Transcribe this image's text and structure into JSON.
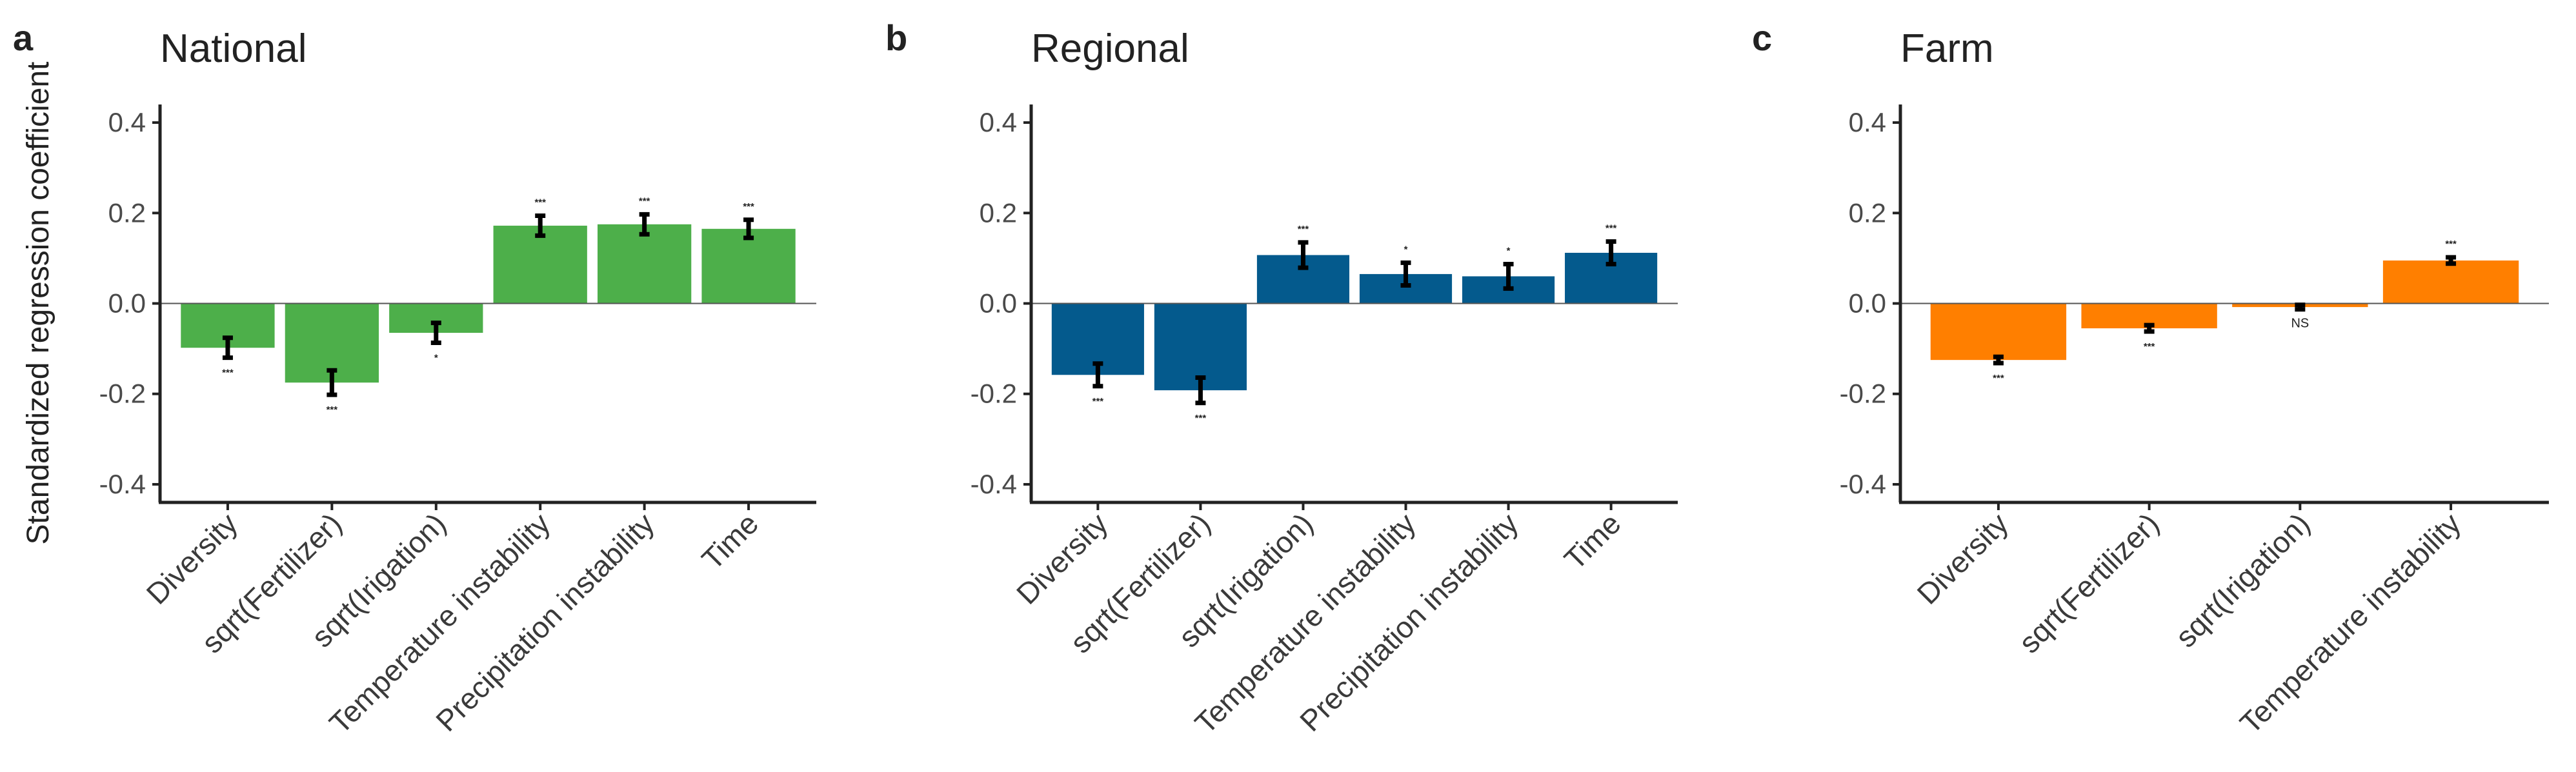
{
  "ylabel": "Standardized regression coefficient",
  "chart_data": [
    {
      "type": "bar",
      "panel": "a",
      "title": "National",
      "color": "#4DAF4A",
      "categories": [
        "Diversity",
        "sqrt(Fertilizer)",
        "sqrt(Irigation)",
        "Temperature instability",
        "Precipitation instability",
        "Time"
      ],
      "values": [
        -0.098,
        -0.175,
        -0.065,
        0.172,
        0.175,
        0.165
      ],
      "errors": [
        0.022,
        0.027,
        0.022,
        0.022,
        0.022,
        0.02
      ],
      "significance": [
        "***",
        "***",
        "*",
        "***",
        "***",
        "***"
      ],
      "ylim": [
        -0.44,
        0.44
      ],
      "yticks": [
        0.4,
        0.2,
        0.0,
        -0.2,
        -0.4
      ],
      "ytick_labels": [
        "0.4",
        "0.2",
        "0.0",
        "-0.2",
        "-0.4"
      ],
      "xlabel": "",
      "ylabel": "Standardized regression coefficient",
      "grid": false
    },
    {
      "type": "bar",
      "panel": "b",
      "title": "Regional",
      "color": "#045A8D",
      "categories": [
        "Diversity",
        "sqrt(Fertilizer)",
        "sqrt(Irigation)",
        "Temperature instability",
        "Precipitation instability",
        "Time"
      ],
      "values": [
        -0.158,
        -0.192,
        0.107,
        0.065,
        0.06,
        0.112
      ],
      "errors": [
        0.025,
        0.028,
        0.028,
        0.025,
        0.027,
        0.025
      ],
      "significance": [
        "***",
        "***",
        "***",
        "*",
        "*",
        "***"
      ],
      "ylim": [
        -0.44,
        0.44
      ],
      "yticks": [
        0.4,
        0.2,
        0.0,
        -0.2,
        -0.4
      ],
      "ytick_labels": [
        "0.4",
        "0.2",
        "0.0",
        "-0.2",
        "-0.4"
      ],
      "xlabel": "",
      "ylabel": "",
      "grid": false
    },
    {
      "type": "bar",
      "panel": "c",
      "title": "Farm",
      "color": "#FF7F00",
      "categories": [
        "Diversity",
        "sqrt(Fertilizer)",
        "sqrt(Irigation)",
        "Temperature instability"
      ],
      "values": [
        -0.125,
        -0.055,
        -0.008,
        0.095
      ],
      "errors": [
        0.007,
        0.007,
        0.005,
        0.007
      ],
      "significance": [
        "***",
        "***",
        "NS",
        "***"
      ],
      "ylim": [
        -0.44,
        0.44
      ],
      "yticks": [
        0.4,
        0.2,
        0.0,
        -0.2,
        -0.4
      ],
      "ytick_labels": [
        "0.4",
        "0.2",
        "0.0",
        "-0.2",
        "-0.4"
      ],
      "xlabel": "",
      "ylabel": "",
      "grid": false
    }
  ]
}
